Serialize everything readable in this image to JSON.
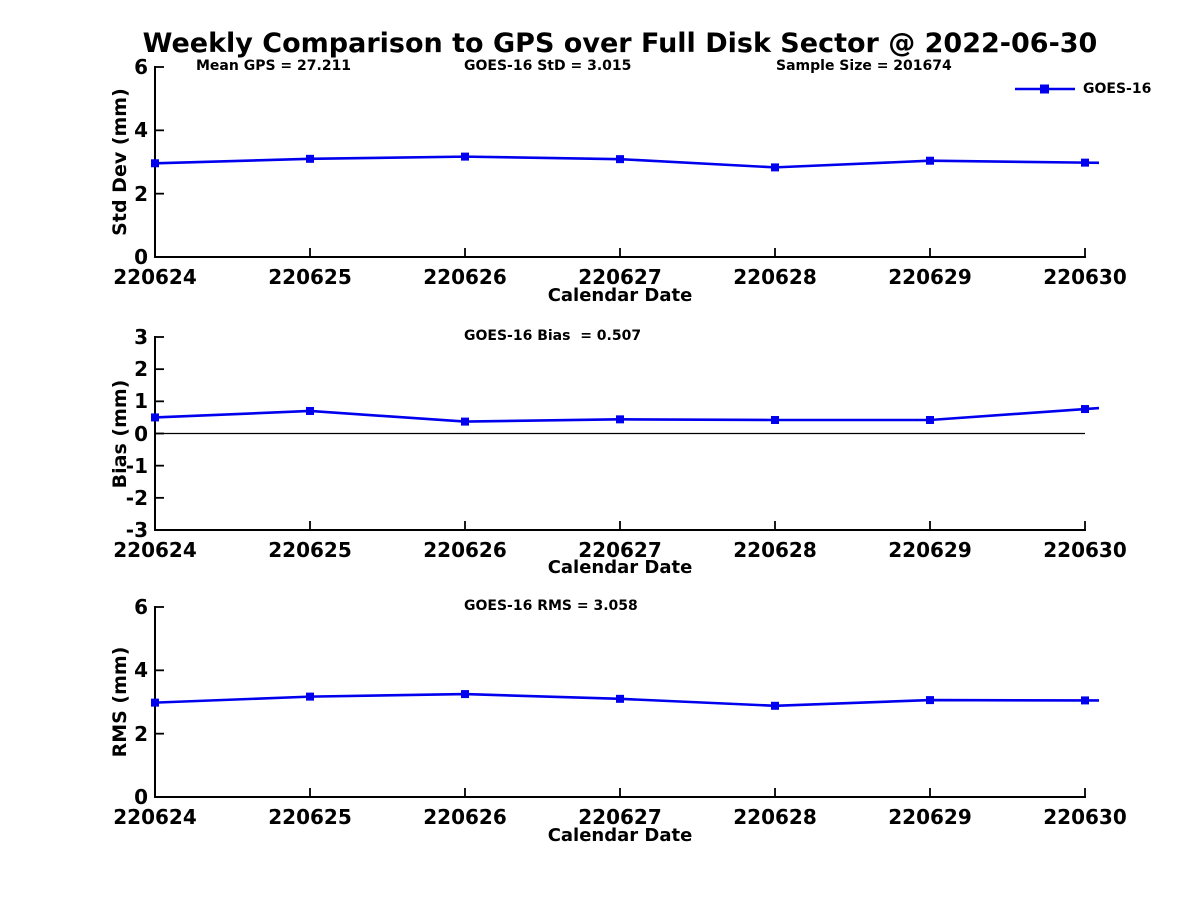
{
  "title": "Weekly Comparison to GPS over Full Disk Sector @ 2022-06-30",
  "legend": {
    "label": "GOES-16"
  },
  "colors": {
    "series": "#0000ee",
    "axis": "#000000",
    "text": "#000000",
    "zero_line": "#000000",
    "background": "#ffffff"
  },
  "x_axis": {
    "label": "Calendar Date",
    "tick_labels": [
      "220624",
      "220625",
      "220626",
      "220627",
      "220628",
      "220629",
      "220630"
    ]
  },
  "chart_data": [
    {
      "type": "line",
      "id": "std-dev",
      "title": "",
      "annotations": [
        "Mean GPS = 27.211",
        "GOES-16 StD = 3.015",
        "Sample Size = 201674"
      ],
      "xlabel": "Calendar Date",
      "ylabel": "Std Dev (mm)",
      "categories": [
        "220624",
        "220625",
        "220626",
        "220627",
        "220628",
        "220629",
        "220630"
      ],
      "series": [
        {
          "name": "GOES-16",
          "marker": "square",
          "color": "#0000ee",
          "values": [
            2.96,
            3.1,
            3.17,
            3.09,
            2.83,
            3.04,
            2.98
          ]
        }
      ],
      "ylim": [
        0,
        6
      ],
      "yticks": [
        0,
        2,
        4,
        6
      ],
      "zero_line": false,
      "grid": false,
      "legend_position": "top-right-outside"
    },
    {
      "type": "line",
      "id": "bias",
      "title": "",
      "annotations": [
        "GOES-16 Bias  = 0.507"
      ],
      "xlabel": "Calendar Date",
      "ylabel": "Bias (mm)",
      "categories": [
        "220624",
        "220625",
        "220626",
        "220627",
        "220628",
        "220629",
        "220630"
      ],
      "series": [
        {
          "name": "GOES-16",
          "marker": "square",
          "color": "#0000ee",
          "values": [
            0.5,
            0.7,
            0.37,
            0.44,
            0.42,
            0.42,
            0.76
          ]
        }
      ],
      "ylim": [
        -3,
        3
      ],
      "yticks": [
        -3,
        -2,
        -1,
        0,
        1,
        2,
        3
      ],
      "zero_line": true,
      "grid": false,
      "legend_position": "none"
    },
    {
      "type": "line",
      "id": "rms",
      "title": "",
      "annotations": [
        "GOES-16 RMS = 3.058"
      ],
      "xlabel": "Calendar Date",
      "ylabel": "RMS (mm)",
      "categories": [
        "220624",
        "220625",
        "220626",
        "220627",
        "220628",
        "220629",
        "220630"
      ],
      "series": [
        {
          "name": "GOES-16",
          "marker": "square",
          "color": "#0000ee",
          "values": [
            2.98,
            3.17,
            3.25,
            3.1,
            2.88,
            3.06,
            3.05
          ]
        }
      ],
      "ylim": [
        0,
        6
      ],
      "yticks": [
        0,
        2,
        4,
        6
      ],
      "zero_line": false,
      "grid": false,
      "legend_position": "none"
    }
  ]
}
